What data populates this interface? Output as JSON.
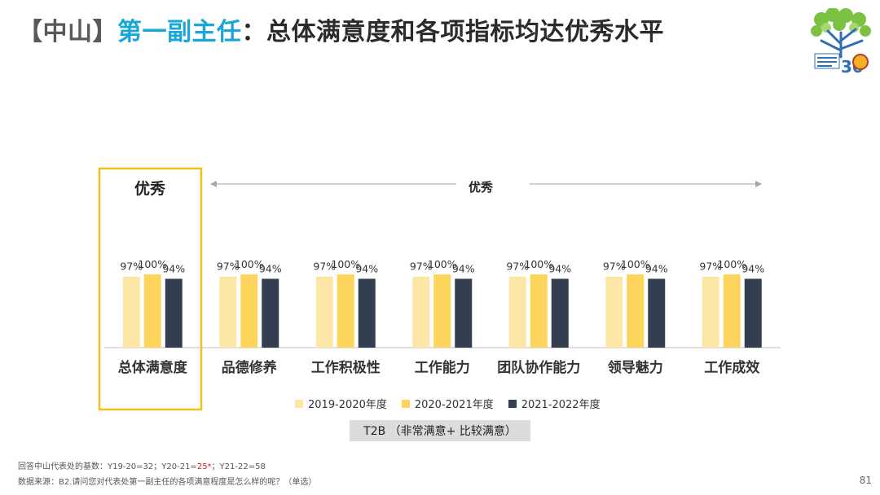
{
  "header": {
    "title_bracket": "【中山】",
    "title_role": "第一副主任",
    "title_rest": "：总体满意度和各项指标均达优秀水平"
  },
  "chart_data": {
    "type": "bar",
    "categories": [
      "总体满意度",
      "品德修养",
      "工作积极性",
      "工作能力",
      "团队协作能力",
      "领导魅力",
      "工作成效"
    ],
    "series": [
      {
        "name": "2019-2020年度",
        "color": "#fde7a6",
        "values": [
          97,
          97,
          97,
          97,
          97,
          97,
          97
        ],
        "labels": [
          "97%",
          "97%",
          "97%",
          "97%",
          "97%",
          "97%",
          "97%"
        ]
      },
      {
        "name": "2020-2021年度",
        "color": "#fdd55c",
        "values": [
          100,
          100,
          100,
          100,
          100,
          100,
          100
        ],
        "labels": [
          "100%",
          "100%",
          "100%",
          "100%",
          "100%",
          "100%",
          "100%"
        ]
      },
      {
        "name": "2021-2022年度",
        "color": "#333f50",
        "values": [
          94,
          94,
          94,
          94,
          94,
          94,
          94
        ],
        "labels": [
          "94%",
          "94%",
          "94%",
          "94%",
          "94%",
          "94%",
          "94%"
        ]
      }
    ],
    "ylim": [
      0,
      100
    ],
    "grid": false,
    "legend_position": "bottom",
    "group_labels": {
      "overall": "优秀",
      "others": "优秀"
    },
    "highlight_color": "#f5bf1b",
    "arrow_color": "#a6a6a6"
  },
  "metric_label": "T2B （非常满意+ 比较满意）",
  "footnotes": {
    "base_prefix": "回答中山代表处的基数：Y19-20=32；Y20-21=",
    "base_red": "25*",
    "base_suffix": "；Y21-22=58",
    "source": "数据来源：B2.请问您对代表处第一副主任的各项满意程度是怎么样的呢？（单选）"
  },
  "page_number": "81",
  "logo": {
    "icon": "tree-anniversary-logo"
  }
}
